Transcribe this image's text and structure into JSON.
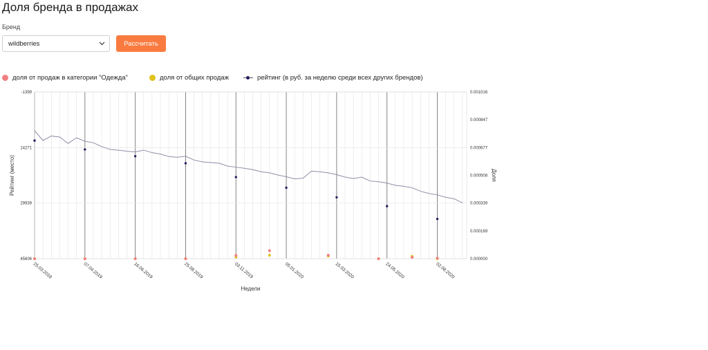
{
  "page": {
    "title": "Доля бренда в продажах"
  },
  "form": {
    "brand_label": "Бренд",
    "brand_value": "wildberries",
    "calc_button": "Рассчитать"
  },
  "colors": {
    "category_share": "#f08080",
    "total_share": "#e0c31a",
    "rating_line": "#8f8ca8",
    "rating_point": "#2a1a5e",
    "button": "#f97b40"
  },
  "chart_data": {
    "type": "line",
    "legend": [
      {
        "name": "доля от продаж в категории \"Одежда\"",
        "marker": "dot",
        "color": "#f08080"
      },
      {
        "name": "доля от общих продаж",
        "marker": "dot",
        "color": "#e0c31a"
      },
      {
        "name": "рейтинг (в руб. за неделю среди всех других брендов)",
        "marker": "line",
        "color": "#2a1a5e"
      }
    ],
    "legend_position": "top-left",
    "xlabel": "Недели",
    "ylabel_left": "Рейтинг (место)",
    "ylabel_right": "Доля",
    "y_left": {
      "ticks": [
        -1399,
        14271,
        29939,
        45606
      ],
      "range": [
        -1399,
        45606
      ],
      "inverted": true
    },
    "y_right": {
      "ticks": [
        "0.000000",
        "0.000169",
        "0.000339",
        "0.000508",
        "0.000677",
        "0.000847",
        "0.001016"
      ],
      "range": [
        0,
        0.001016
      ]
    },
    "x_tick_labels": [
      "25.03.2018",
      "07.04.2019",
      "16.06.2019",
      "25.08.2019",
      "03.11.2019",
      "05.01.2020",
      "15.03.2020",
      "24.05.2020",
      "02.08.2020"
    ],
    "x_tick_indices": [
      0,
      12,
      24,
      36,
      48,
      60,
      72,
      84,
      96
    ],
    "grid": true,
    "n_weeks": 104,
    "rating": [
      [
        0,
        9500
      ],
      [
        2,
        12300
      ],
      [
        4,
        11000
      ],
      [
        6,
        11300
      ],
      [
        8,
        13100
      ],
      [
        10,
        11500
      ],
      [
        12,
        12500
      ],
      [
        14,
        12900
      ],
      [
        16,
        14000
      ],
      [
        18,
        14800
      ],
      [
        20,
        15000
      ],
      [
        22,
        15300
      ],
      [
        24,
        15500
      ],
      [
        26,
        15000
      ],
      [
        28,
        15700
      ],
      [
        30,
        16100
      ],
      [
        32,
        16800
      ],
      [
        34,
        17000
      ],
      [
        36,
        16700
      ],
      [
        38,
        17800
      ],
      [
        40,
        18300
      ],
      [
        42,
        18500
      ],
      [
        44,
        18700
      ],
      [
        46,
        19500
      ],
      [
        48,
        19800
      ],
      [
        50,
        20100
      ],
      [
        52,
        20500
      ],
      [
        54,
        21100
      ],
      [
        56,
        21400
      ],
      [
        58,
        22000
      ],
      [
        60,
        22500
      ],
      [
        62,
        23100
      ],
      [
        64,
        22900
      ],
      [
        66,
        20900
      ],
      [
        68,
        21100
      ],
      [
        70,
        21400
      ],
      [
        72,
        21900
      ],
      [
        74,
        22600
      ],
      [
        76,
        23000
      ],
      [
        78,
        22600
      ],
      [
        80,
        23700
      ],
      [
        82,
        23900
      ],
      [
        84,
        24300
      ],
      [
        86,
        24900
      ],
      [
        88,
        25200
      ],
      [
        90,
        25600
      ],
      [
        92,
        26600
      ],
      [
        94,
        27200
      ],
      [
        96,
        27600
      ],
      [
        98,
        28300
      ],
      [
        100,
        28700
      ],
      [
        102,
        29900
      ]
    ],
    "rating_points": [
      [
        0,
        12300
      ],
      [
        12,
        14800
      ],
      [
        24,
        16700
      ],
      [
        36,
        18700
      ],
      [
        48,
        22600
      ],
      [
        60,
        25600
      ],
      [
        72,
        28300
      ],
      [
        84,
        30800
      ],
      [
        96,
        34400
      ]
    ],
    "category_share": [
      [
        0,
        0
      ],
      [
        12,
        0
      ],
      [
        24,
        0
      ],
      [
        36,
        0
      ],
      [
        48,
        1.98e-05
      ],
      [
        56,
        4.9e-05
      ],
      [
        70,
        2.13e-05
      ],
      [
        82,
        0
      ],
      [
        90,
        7.94e-06
      ],
      [
        96,
        3.11e-06
      ]
    ],
    "total_share": [
      [
        0,
        0
      ],
      [
        12,
        0
      ],
      [
        24,
        0
      ],
      [
        36,
        0
      ],
      [
        48,
        1.05e-05
      ],
      [
        56,
        2.1e-05
      ],
      [
        70,
        1.62e-05
      ],
      [
        82,
        0
      ],
      [
        90,
        1.43e-05
      ],
      [
        96,
        0
      ]
    ]
  }
}
